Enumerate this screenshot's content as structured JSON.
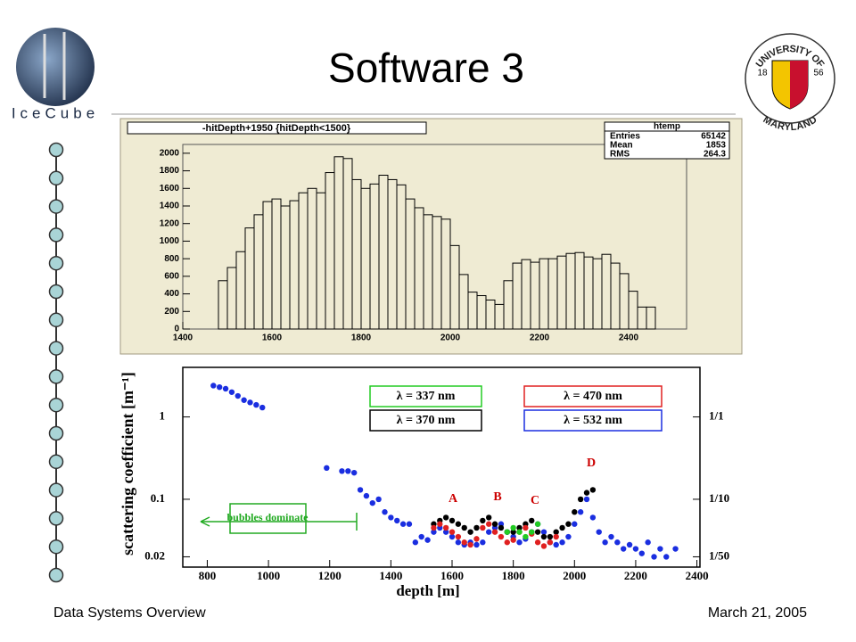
{
  "slide": {
    "title": "Software 3",
    "footer_left": "Data Systems Overview",
    "footer_right": "March 21, 2005",
    "logo_left": "IceCube",
    "logo_right_top": "UNIVERSITY OF",
    "logo_right_bottom": "MARYLAND",
    "logo_right_year_left": "18",
    "logo_right_year_right": "56"
  },
  "chart_data": [
    {
      "type": "histogram",
      "title": "-hitDepth+1950 {hitDepth<1500}",
      "stats_title": "htemp",
      "stats": [
        {
          "label": "Entries",
          "value": 65142
        },
        {
          "label": "Mean",
          "value": 1853
        },
        {
          "label": "RMS",
          "value": 264.3
        }
      ],
      "bins": [
        1480,
        1500,
        1520,
        1540,
        1560,
        1580,
        1600,
        1620,
        1640,
        1660,
        1680,
        1700,
        1720,
        1740,
        1760,
        1780,
        1800,
        1820,
        1840,
        1860,
        1880,
        1900,
        1920,
        1940,
        1960,
        1980,
        2000,
        2020,
        2040,
        2060,
        2080,
        2100,
        2120,
        2140,
        2160,
        2180,
        2200,
        2220,
        2240,
        2260,
        2280,
        2300,
        2320,
        2340,
        2360,
        2380,
        2400,
        2420,
        2440,
        2460
      ],
      "values": [
        550,
        700,
        880,
        1150,
        1300,
        1450,
        1480,
        1400,
        1460,
        1550,
        1600,
        1550,
        1780,
        1960,
        1940,
        1700,
        1600,
        1650,
        1750,
        1700,
        1640,
        1480,
        1380,
        1300,
        1280,
        1250,
        950,
        620,
        420,
        380,
        330,
        280,
        550,
        750,
        790,
        760,
        800,
        800,
        830,
        860,
        870,
        820,
        800,
        850,
        750,
        630,
        430,
        250,
        250
      ],
      "color": "#000000",
      "background": "#efebd3",
      "xlim": [
        1400,
        2530
      ],
      "xticks": [
        1400,
        1600,
        1800,
        2000,
        2200,
        2400
      ],
      "ylim": [
        0,
        2100
      ],
      "yticks": [
        0,
        200,
        400,
        600,
        800,
        1000,
        1200,
        1400,
        1600,
        1800,
        2000
      ]
    },
    {
      "type": "scatter",
      "x_label": "depth [m]",
      "y_label": "scattering coefficient [m⁻¹]",
      "log_y": true,
      "xlim": [
        720,
        2410
      ],
      "xticks": [
        800,
        1000,
        1200,
        1400,
        1600,
        1800,
        2000,
        2200,
        2400
      ],
      "ylim": [
        0.015,
        4
      ],
      "yticks": [
        0.02,
        0.1,
        1
      ],
      "y2lim": [
        0.015,
        4
      ],
      "y2ticks": [
        {
          "value": 1,
          "label": "1/1"
        },
        {
          "value": 0.1,
          "label": "1/10"
        },
        {
          "value": 0.02,
          "label": "1/50"
        }
      ],
      "annotations": [
        "A",
        "B",
        "C",
        "D",
        "bubbles dominate"
      ],
      "series": [
        {
          "name": "λ = 337 nm",
          "color": "#22cc22",
          "x": [
            1780,
            1800,
            1820,
            1840,
            1860,
            1880
          ],
          "values": [
            0.04,
            0.045,
            0.04,
            0.035,
            0.04,
            0.05
          ]
        },
        {
          "name": "λ = 470 nm",
          "color": "#e02020",
          "x": [
            1540,
            1560,
            1580,
            1600,
            1620,
            1640,
            1660,
            1680,
            1700,
            1720,
            1740,
            1760,
            1780,
            1800,
            1820,
            1840,
            1860,
            1880,
            1900,
            1920,
            1940
          ],
          "values": [
            0.045,
            0.05,
            0.045,
            0.04,
            0.035,
            0.03,
            0.028,
            0.033,
            0.045,
            0.05,
            0.04,
            0.035,
            0.03,
            0.032,
            0.04,
            0.045,
            0.038,
            0.03,
            0.027,
            0.03,
            0.035
          ]
        },
        {
          "name": "λ = 370 nm",
          "color": "#000000",
          "x": [
            1540,
            1560,
            1580,
            1600,
            1620,
            1640,
            1660,
            1680,
            1700,
            1720,
            1740,
            1760,
            1780,
            1800,
            1820,
            1840,
            1860,
            1880,
            1900,
            1920,
            1940,
            1960,
            1980,
            2000,
            2020,
            2040,
            2060
          ],
          "values": [
            0.05,
            0.055,
            0.06,
            0.055,
            0.05,
            0.045,
            0.04,
            0.045,
            0.055,
            0.06,
            0.05,
            0.045,
            0.04,
            0.04,
            0.045,
            0.05,
            0.055,
            0.04,
            0.035,
            0.035,
            0.04,
            0.045,
            0.05,
            0.07,
            0.1,
            0.12,
            0.13
          ]
        },
        {
          "name": "λ = 532 nm",
          "color": "#1a2ee0",
          "x": [
            820,
            840,
            860,
            880,
            900,
            920,
            940,
            960,
            980,
            1190,
            1240,
            1260,
            1280,
            1300,
            1320,
            1340,
            1360,
            1380,
            1400,
            1420,
            1440,
            1460,
            1480,
            1500,
            1520,
            1540,
            1560,
            1580,
            1600,
            1620,
            1640,
            1660,
            1680,
            1700,
            1720,
            1740,
            1760,
            1780,
            1800,
            1820,
            1840,
            1860,
            1880,
            1900,
            1920,
            1940,
            1960,
            1980,
            2000,
            2020,
            2040,
            2060,
            2080,
            2100,
            2120,
            2140,
            2160,
            2180,
            2200,
            2220,
            2240,
            2260,
            2280,
            2300,
            2330
          ],
          "values": [
            2.4,
            2.3,
            2.2,
            2.0,
            1.8,
            1.6,
            1.5,
            1.4,
            1.3,
            0.24,
            0.22,
            0.22,
            0.21,
            0.13,
            0.11,
            0.09,
            0.1,
            0.07,
            0.06,
            0.055,
            0.05,
            0.05,
            0.03,
            0.035,
            0.032,
            0.04,
            0.045,
            0.04,
            0.035,
            0.03,
            0.028,
            0.03,
            0.028,
            0.03,
            0.04,
            0.045,
            0.05,
            0.04,
            0.035,
            0.03,
            0.033,
            0.04,
            0.05,
            0.04,
            0.03,
            0.028,
            0.03,
            0.035,
            0.05,
            0.07,
            0.1,
            0.06,
            0.04,
            0.03,
            0.035,
            0.03,
            0.025,
            0.028,
            0.025,
            0.022,
            0.03,
            0.02,
            0.025,
            0.02,
            0.025
          ]
        }
      ]
    }
  ]
}
